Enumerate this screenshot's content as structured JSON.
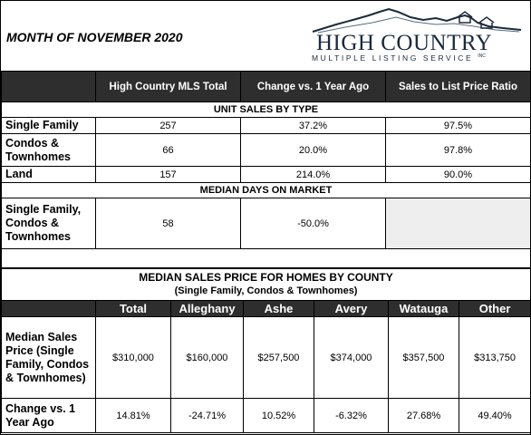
{
  "header": {
    "title": "MONTH OF NOVEMBER 2020",
    "logo_main": "HIGH COUNTRY",
    "logo_sub": "MULTIPLE LISTING SERVICE",
    "logo_reg": "INC"
  },
  "summary_table": {
    "columns": [
      "High Country MLS Total",
      "Change vs. 1 Year Ago",
      "Sales to List Price Ratio"
    ],
    "unit_sales_header": "UNIT SALES BY TYPE",
    "rows": [
      {
        "label": "Single Family",
        "total": "257",
        "change": "37.2%",
        "ratio": "97.5%"
      },
      {
        "label": "Condos & Townhomes",
        "total": "66",
        "change": "20.0%",
        "ratio": "97.8%"
      },
      {
        "label": "Land",
        "total": "157",
        "change": "214.0%",
        "ratio": "90.0%"
      }
    ],
    "dom_header": "MEDIAN DAYS ON MARKET",
    "dom_row": {
      "label": "Single Family, Condos & Townhomes",
      "total": "58",
      "change": "-50.0%"
    }
  },
  "county_table": {
    "title": "MEDIAN SALES PRICE FOR HOMES BY COUNTY",
    "subtitle": "(Single Family, Condos & Townhomes)",
    "columns": [
      "Total",
      "Alleghany",
      "Ashe",
      "Avery",
      "Watauga",
      "Other"
    ],
    "price_row": {
      "label": "Median Sales Price (Single Family, Condos & Townhomes)",
      "values": [
        "$310,000",
        "$160,000",
        "$257,500",
        "$374,000",
        "$357,500",
        "$313,750"
      ]
    },
    "change_row": {
      "label": "Change vs. 1 Year Ago",
      "values": [
        "14.81%",
        "-24.71%",
        "10.52%",
        "-6.32%",
        "27.68%",
        "49.40%"
      ]
    }
  }
}
